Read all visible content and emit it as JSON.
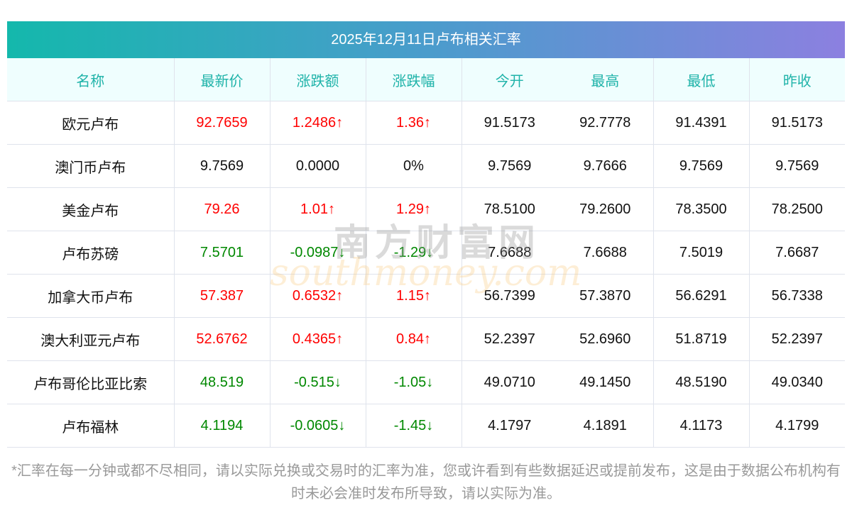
{
  "title": "2025年12月11日卢布相关汇率",
  "headers": [
    "名称",
    "最新价",
    "涨跌额",
    "涨跌幅",
    "今开",
    "最高",
    "最低",
    "昨收"
  ],
  "rows": [
    {
      "name": "欧元卢布",
      "latest": "92.7659",
      "change": "1.2486↑",
      "pct": "1.36↑",
      "open": "91.5173",
      "high": "92.7778",
      "low": "91.4391",
      "prev": "91.5173",
      "trend": "up"
    },
    {
      "name": "澳门币卢布",
      "latest": "9.7569",
      "change": "0.0000",
      "pct": "0%",
      "open": "9.7569",
      "high": "9.7666",
      "low": "9.7569",
      "prev": "9.7569",
      "trend": "flat"
    },
    {
      "name": "美金卢布",
      "latest": "79.26",
      "change": "1.01↑",
      "pct": "1.29↑",
      "open": "78.5100",
      "high": "79.2600",
      "low": "78.3500",
      "prev": "78.2500",
      "trend": "up"
    },
    {
      "name": "卢布苏磅",
      "latest": "7.5701",
      "change": "-0.0987↓",
      "pct": "-1.29↓",
      "open": "7.6688",
      "high": "7.6688",
      "low": "7.5019",
      "prev": "7.6687",
      "trend": "down"
    },
    {
      "name": "加拿大币卢布",
      "latest": "57.387",
      "change": "0.6532↑",
      "pct": "1.15↑",
      "open": "56.7399",
      "high": "57.3870",
      "low": "56.6291",
      "prev": "56.7338",
      "trend": "up"
    },
    {
      "name": "澳大利亚元卢布",
      "latest": "52.6762",
      "change": "0.4365↑",
      "pct": "0.84↑",
      "open": "52.2397",
      "high": "52.6960",
      "low": "51.8719",
      "prev": "52.2397",
      "trend": "up"
    },
    {
      "name": "卢布哥伦比亚比索",
      "latest": "48.519",
      "change": "-0.515↓",
      "pct": "-1.05↓",
      "open": "49.0710",
      "high": "49.1450",
      "low": "48.5190",
      "prev": "49.0340",
      "trend": "down"
    },
    {
      "name": "卢布福林",
      "latest": "4.1194",
      "change": "-0.0605↓",
      "pct": "-1.45↓",
      "open": "4.1797",
      "high": "4.1891",
      "low": "4.1173",
      "prev": "4.1799",
      "trend": "down"
    }
  ],
  "watermark": {
    "cn": "南方财富网",
    "en": "southmoney.com"
  },
  "note": "*汇率在每一分钟或都不尽相同，请以实际兑换或交易时的汇率为准，您或许看到有些数据延迟或提前发布，这是由于数据公布机构有时未必会准时发布所导致，请以实际为准。"
}
